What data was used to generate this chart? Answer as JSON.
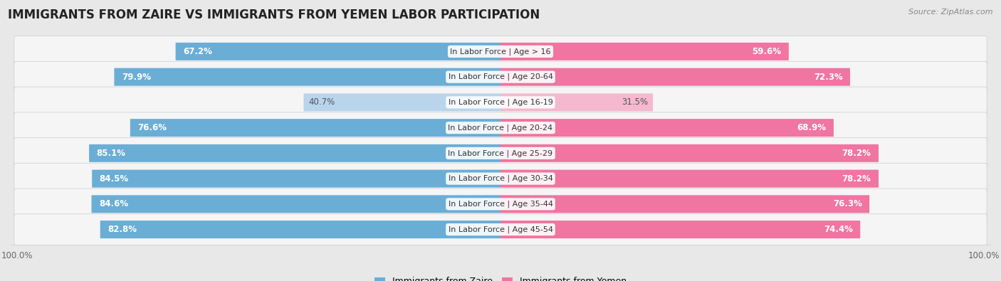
{
  "title": "IMMIGRANTS FROM ZAIRE VS IMMIGRANTS FROM YEMEN LABOR PARTICIPATION",
  "source": "Source: ZipAtlas.com",
  "categories": [
    "In Labor Force | Age > 16",
    "In Labor Force | Age 20-64",
    "In Labor Force | Age 16-19",
    "In Labor Force | Age 20-24",
    "In Labor Force | Age 25-29",
    "In Labor Force | Age 30-34",
    "In Labor Force | Age 35-44",
    "In Labor Force | Age 45-54"
  ],
  "zaire_values": [
    67.2,
    79.9,
    40.7,
    76.6,
    85.1,
    84.5,
    84.6,
    82.8
  ],
  "yemen_values": [
    59.6,
    72.3,
    31.5,
    68.9,
    78.2,
    78.2,
    76.3,
    74.4
  ],
  "zaire_color": "#6aaed6",
  "zaire_color_light": "#b8d5ec",
  "yemen_color": "#f075a0",
  "yemen_color_light": "#f5b8ce",
  "bg_color": "#e8e8e8",
  "row_bg": "#f5f5f5",
  "max_value": 100.0,
  "legend_zaire": "Immigrants from Zaire",
  "legend_yemen": "Immigrants from Yemen",
  "title_fontsize": 12,
  "bar_fontsize": 8.5,
  "label_fontsize": 8,
  "source_fontsize": 8
}
